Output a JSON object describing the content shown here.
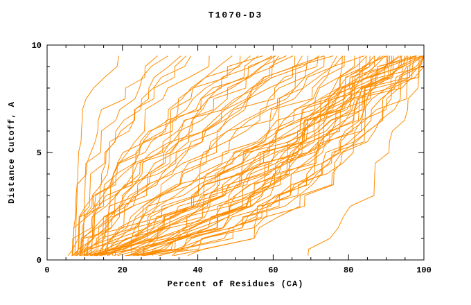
{
  "title": "T1070-D3",
  "chart_data": {
    "type": "line",
    "title": "T1070-D3",
    "xlabel": "Percent of Residues (CA)",
    "ylabel": "Distance Cutoff, A",
    "xlim": [
      0,
      100
    ],
    "ylim": [
      0,
      10
    ],
    "x_major_ticks": [
      0,
      20,
      40,
      60,
      80,
      100
    ],
    "x_minor_step": 5,
    "y_major_ticks": [
      0,
      5,
      10
    ],
    "y_minor_step": 1,
    "grid": false,
    "legend": "none",
    "line_color": "#ff8c00",
    "axis_color": "#000000",
    "background": "#ffffff",
    "curve_y_start": 0.2,
    "curve_y_end": 9.5,
    "curve_y_step": 0.5,
    "curves_note": "Each curve is the cumulative percent of CA residues (x) within a distance cutoff (y) for one predicted model; parameters are [x_at_cutoff_0, x_at_cutoff_9.5, shape_exponent]",
    "curves": [
      [
        6,
        20,
        4.0
      ],
      [
        7,
        33,
        2.6
      ],
      [
        9,
        36,
        2.2
      ],
      [
        8,
        40,
        2.4
      ],
      [
        11,
        44,
        2.0
      ],
      [
        6,
        30,
        2.8
      ],
      [
        12,
        48,
        1.9
      ],
      [
        10,
        38,
        2.3
      ],
      [
        6,
        52,
        1.6
      ],
      [
        7,
        55,
        1.4
      ],
      [
        8,
        58,
        1.7
      ],
      [
        9,
        60,
        1.3
      ],
      [
        10,
        62,
        1.5
      ],
      [
        11,
        65,
        1.2
      ],
      [
        12,
        68,
        1.6
      ],
      [
        13,
        70,
        1.1
      ],
      [
        7,
        72,
        1.4
      ],
      [
        8,
        75,
        1.3
      ],
      [
        9,
        54,
        1.8
      ],
      [
        10,
        57,
        1.2
      ],
      [
        6,
        63,
        1.5
      ],
      [
        11,
        66,
        1.7
      ],
      [
        12,
        73,
        1.0
      ],
      [
        8,
        69,
        1.4
      ],
      [
        7,
        61,
        1.9
      ],
      [
        9,
        74,
        1.2
      ],
      [
        6,
        78,
        1.0
      ],
      [
        7,
        80,
        0.9
      ],
      [
        8,
        82,
        1.1
      ],
      [
        9,
        85,
        0.8
      ],
      [
        10,
        88,
        1.0
      ],
      [
        11,
        90,
        0.7
      ],
      [
        12,
        92,
        0.9
      ],
      [
        13,
        95,
        0.8
      ],
      [
        6,
        97,
        1.0
      ],
      [
        7,
        100,
        0.9
      ],
      [
        8,
        98,
        0.7
      ],
      [
        9,
        96,
        0.85
      ],
      [
        10,
        94,
        0.95
      ],
      [
        11,
        99,
        0.75
      ],
      [
        12,
        86,
        0.8
      ],
      [
        13,
        84,
        0.9
      ],
      [
        6,
        89,
        0.7
      ],
      [
        7,
        91,
        0.85
      ],
      [
        8,
        93,
        0.6
      ],
      [
        9,
        100,
        0.8
      ],
      [
        10,
        100,
        0.65
      ],
      [
        11,
        97,
        0.9
      ],
      [
        12,
        100,
        0.7
      ],
      [
        7,
        99,
        0.55
      ],
      [
        6,
        70,
        0.45
      ],
      [
        7,
        75,
        0.5
      ],
      [
        8,
        80,
        0.4
      ],
      [
        9,
        85,
        0.45
      ],
      [
        10,
        90,
        0.5
      ],
      [
        11,
        95,
        0.4
      ],
      [
        12,
        100,
        0.45
      ],
      [
        6,
        88,
        0.35
      ],
      [
        7,
        92,
        0.4
      ],
      [
        8,
        96,
        0.5
      ],
      [
        9,
        99,
        0.35
      ],
      [
        10,
        83,
        0.45
      ],
      [
        11,
        87,
        0.5
      ],
      [
        6,
        94,
        0.4
      ],
      [
        7,
        86,
        0.45
      ],
      [
        8,
        90,
        0.35
      ],
      [
        13,
        100,
        0.5
      ],
      [
        9,
        81,
        0.4
      ],
      [
        10,
        98,
        0.35
      ],
      [
        11,
        100,
        0.5
      ],
      [
        64,
        100,
        0.5
      ]
    ]
  }
}
